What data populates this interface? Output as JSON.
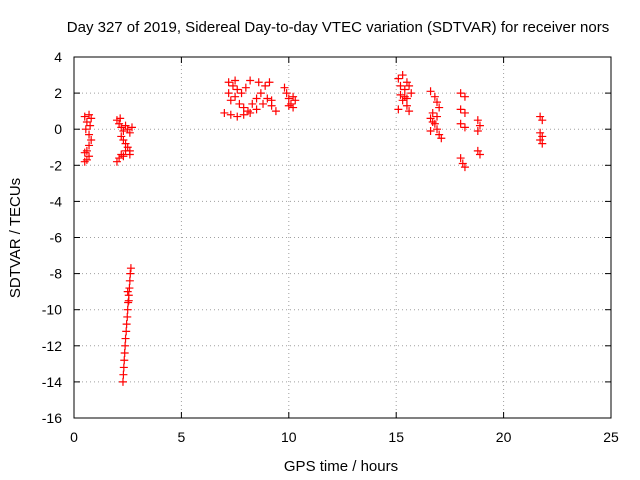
{
  "chart_data": {
    "type": "scatter",
    "title": "Day 327 of 2019, Sidereal Day-to-day VTEC variation (SDTVAR) for receiver nors",
    "xlabel": "GPS time / hours",
    "ylabel": "SDTVAR / TECUs",
    "xlim": [
      0,
      25
    ],
    "ylim": [
      -16,
      4
    ],
    "xticks": [
      "0",
      "5",
      "10",
      "15",
      "20",
      "25"
    ],
    "yticks": [
      "4",
      "2",
      "0",
      "-2",
      "-4",
      "-6",
      "-8",
      "-10",
      "-12",
      "-14",
      "-16"
    ],
    "grid": true,
    "marker": "plus",
    "color": "#ff0000",
    "series": [
      {
        "name": "SDTVAR",
        "points": [
          [
            0.5,
            0.7
          ],
          [
            0.6,
            0.4
          ],
          [
            0.7,
            0.8
          ],
          [
            0.75,
            0.2
          ],
          [
            0.7,
            -0.3
          ],
          [
            0.8,
            -0.6
          ],
          [
            0.7,
            -0.9
          ],
          [
            0.6,
            -1.2
          ],
          [
            0.5,
            -1.3
          ],
          [
            0.7,
            -1.5
          ],
          [
            0.6,
            -1.7
          ],
          [
            0.5,
            -1.8
          ],
          [
            0.55,
            0.0
          ],
          [
            0.8,
            0.6
          ],
          [
            2.0,
            0.5
          ],
          [
            2.1,
            0.3
          ],
          [
            2.2,
            0.1
          ],
          [
            2.3,
            -0.1
          ],
          [
            2.4,
            0.2
          ],
          [
            2.5,
            0.0
          ],
          [
            2.6,
            -0.2
          ],
          [
            2.7,
            0.1
          ],
          [
            2.2,
            -0.4
          ],
          [
            2.3,
            -0.6
          ],
          [
            2.4,
            -0.8
          ],
          [
            2.5,
            -1.0
          ],
          [
            2.6,
            -1.2
          ],
          [
            2.2,
            -1.4
          ],
          [
            2.1,
            -1.6
          ],
          [
            2.0,
            -1.8
          ],
          [
            2.3,
            -1.5
          ],
          [
            2.4,
            -1.2
          ],
          [
            2.6,
            -1.4
          ],
          [
            2.15,
            0.6
          ],
          [
            2.65,
            -7.7
          ],
          [
            2.62,
            -8.0
          ],
          [
            2.6,
            -8.4
          ],
          [
            2.58,
            -8.8
          ],
          [
            2.55,
            -9.2
          ],
          [
            2.52,
            -9.6
          ],
          [
            2.5,
            -10.0
          ],
          [
            2.48,
            -10.4
          ],
          [
            2.45,
            -10.8
          ],
          [
            2.43,
            -11.2
          ],
          [
            2.4,
            -11.6
          ],
          [
            2.38,
            -12.0
          ],
          [
            2.36,
            -12.4
          ],
          [
            2.34,
            -12.8
          ],
          [
            2.32,
            -13.2
          ],
          [
            2.3,
            -13.6
          ],
          [
            2.28,
            -14.0
          ],
          [
            2.5,
            -9.0
          ],
          [
            2.55,
            -9.5
          ],
          [
            7.2,
            2.6
          ],
          [
            7.4,
            2.4
          ],
          [
            7.6,
            2.2
          ],
          [
            7.8,
            2.0
          ],
          [
            7.5,
            1.8
          ],
          [
            7.3,
            1.6
          ],
          [
            7.7,
            1.4
          ],
          [
            7.9,
            1.2
          ],
          [
            8.1,
            1.0
          ],
          [
            8.3,
            1.4
          ],
          [
            8.5,
            1.7
          ],
          [
            8.7,
            2.0
          ],
          [
            8.9,
            2.4
          ],
          [
            9.1,
            2.6
          ],
          [
            8.2,
            2.7
          ],
          [
            7.0,
            0.9
          ],
          [
            7.3,
            0.8
          ],
          [
            7.6,
            0.7
          ],
          [
            7.9,
            0.8
          ],
          [
            8.2,
            0.9
          ],
          [
            8.5,
            1.1
          ],
          [
            8.8,
            1.4
          ],
          [
            9.0,
            1.7
          ],
          [
            9.2,
            1.3
          ],
          [
            9.4,
            1.0
          ],
          [
            7.2,
            2.0
          ],
          [
            7.5,
            2.7
          ],
          [
            8.0,
            2.3
          ],
          [
            8.6,
            2.6
          ],
          [
            9.2,
            1.6
          ],
          [
            9.8,
            2.3
          ],
          [
            9.9,
            2.0
          ],
          [
            10.0,
            1.7
          ],
          [
            10.1,
            1.4
          ],
          [
            10.2,
            1.2
          ],
          [
            10.3,
            1.6
          ],
          [
            10.0,
            1.3
          ],
          [
            10.2,
            1.8
          ],
          [
            15.1,
            2.8
          ],
          [
            15.3,
            3.0
          ],
          [
            15.5,
            2.6
          ],
          [
            15.4,
            2.2
          ],
          [
            15.2,
            1.9
          ],
          [
            15.3,
            1.6
          ],
          [
            15.5,
            1.3
          ],
          [
            15.6,
            1.0
          ],
          [
            15.4,
            1.8
          ],
          [
            15.6,
            2.4
          ],
          [
            15.7,
            2.0
          ],
          [
            15.1,
            1.1
          ],
          [
            15.2,
            2.4
          ],
          [
            15.5,
            1.7
          ],
          [
            16.6,
            2.1
          ],
          [
            16.8,
            1.8
          ],
          [
            16.9,
            1.5
          ],
          [
            17.0,
            1.2
          ],
          [
            16.7,
            0.9
          ],
          [
            16.6,
            0.6
          ],
          [
            16.8,
            0.3
          ],
          [
            16.9,
            0.0
          ],
          [
            17.0,
            -0.3
          ],
          [
            17.1,
            -0.5
          ],
          [
            16.7,
            0.4
          ],
          [
            16.6,
            -0.1
          ],
          [
            16.9,
            0.7
          ],
          [
            18.0,
            2.0
          ],
          [
            18.2,
            1.8
          ],
          [
            18.0,
            1.1
          ],
          [
            18.2,
            0.9
          ],
          [
            18.0,
            0.3
          ],
          [
            18.2,
            0.1
          ],
          [
            18.0,
            -1.6
          ],
          [
            18.1,
            -1.9
          ],
          [
            18.2,
            -2.1
          ],
          [
            18.8,
            0.5
          ],
          [
            18.9,
            0.2
          ],
          [
            18.8,
            -0.1
          ],
          [
            18.8,
            -1.2
          ],
          [
            18.9,
            -1.4
          ],
          [
            21.7,
            0.7
          ],
          [
            21.8,
            0.5
          ],
          [
            21.7,
            -0.2
          ],
          [
            21.8,
            -0.4
          ],
          [
            21.7,
            -0.6
          ],
          [
            21.8,
            -0.8
          ]
        ]
      }
    ]
  }
}
